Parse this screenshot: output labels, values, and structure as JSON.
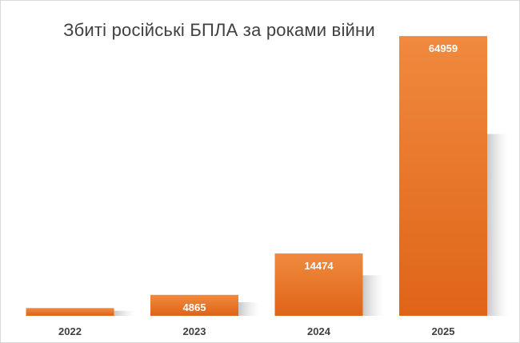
{
  "chart_data": {
    "type": "bar",
    "title": "Збиті російські БПЛА за роками війни",
    "categories": [
      "2022",
      "2023",
      "2024",
      "2025"
    ],
    "values": [
      1792,
      4865,
      14474,
      64959
    ],
    "ylim": [
      0,
      70000
    ],
    "xlabel": "",
    "ylabel": "",
    "grid": false,
    "legend": "none",
    "data_labels": true,
    "colors": {
      "bar_top": "#f08a3e",
      "bar_bottom": "#df6418",
      "label": "#ffffff",
      "tick": "#404040",
      "title": "#404040"
    }
  }
}
